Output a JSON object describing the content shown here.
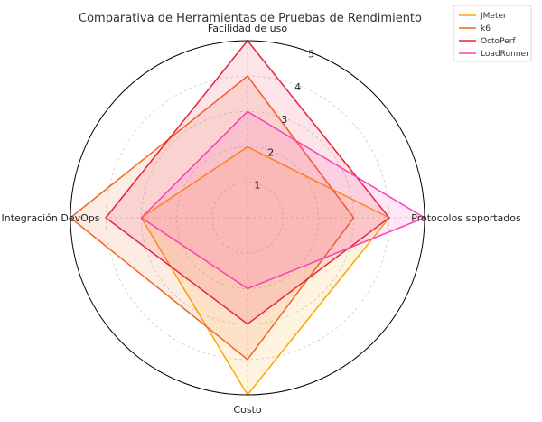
{
  "chart_data": {
    "type": "radar",
    "title": "Comparativa de Herramientas de Pruebas de Rendimiento",
    "axes": [
      "Facilidad de uso",
      "Protocolos soportados",
      "Costo",
      "Integración DevOps"
    ],
    "rlim": [
      0,
      5
    ],
    "ticks": [
      "1",
      "2",
      "3",
      "4",
      "5"
    ],
    "grid": true,
    "legend_position": "top-right",
    "series": [
      {
        "name": "JMeter",
        "values": [
          2,
          4,
          5,
          3
        ],
        "color": "#FFA500"
      },
      {
        "name": "k6",
        "values": [
          4,
          3,
          4,
          5
        ],
        "color": "#F26522"
      },
      {
        "name": "OctoPerf",
        "values": [
          5,
          4,
          3,
          4
        ],
        "color": "#E8243F"
      },
      {
        "name": "LoadRunner",
        "values": [
          3,
          5,
          2,
          3
        ],
        "color": "#FF3DB5"
      }
    ]
  }
}
